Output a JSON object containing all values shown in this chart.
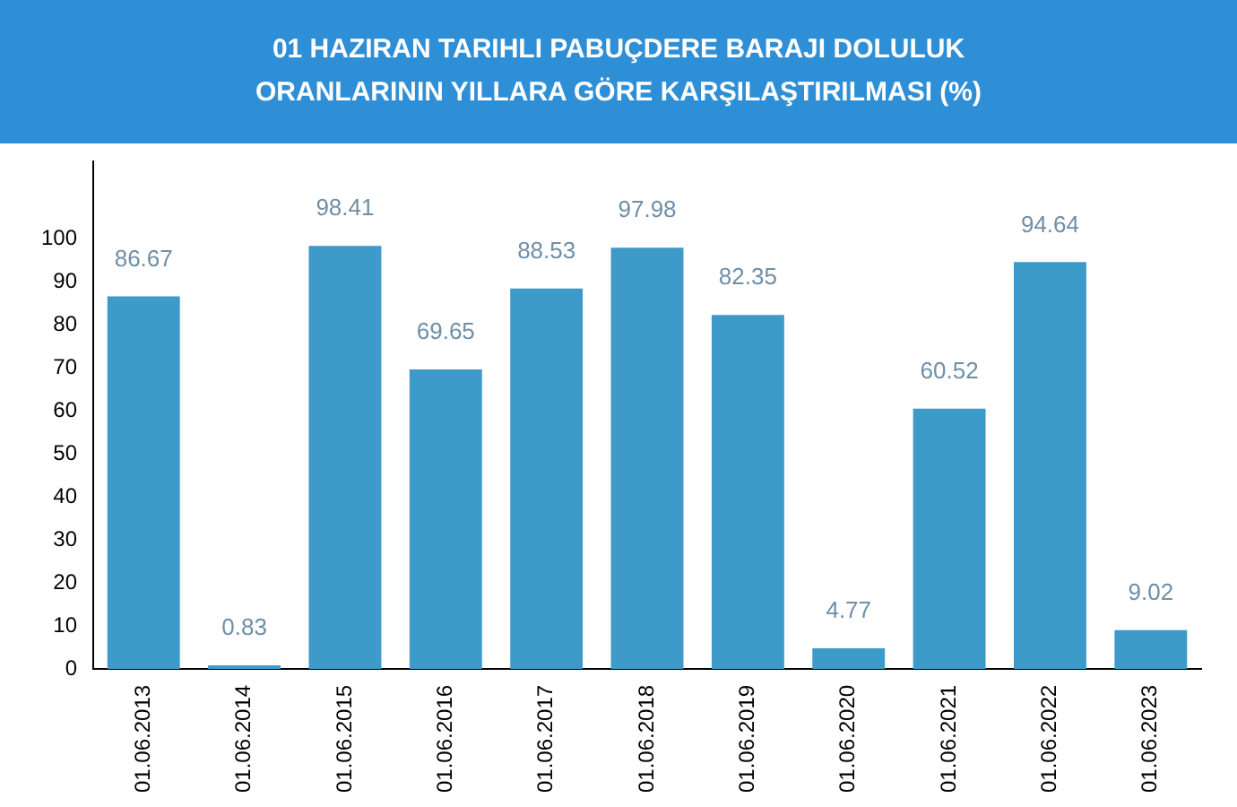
{
  "chart_data": {
    "type": "bar",
    "title": "01 HAZIRAN TARIHLI PABUÇDERE BARAJI DOLULUK ORANLARININ YILLARA GÖRE KARŞILAŞTIRILMASI (%)",
    "categories": [
      "01.06.2013",
      "01.06.2014",
      "01.06.2015",
      "01.06.2016",
      "01.06.2017",
      "01.06.2018",
      "01.06.2019",
      "01.06.2020",
      "01.06.2021",
      "01.06.2022",
      "01.06.2023"
    ],
    "values": [
      86.67,
      0.83,
      98.41,
      69.65,
      88.53,
      97.98,
      82.35,
      4.77,
      60.52,
      94.64,
      9.02
    ],
    "color": "#3d9ac9",
    "ylim": [
      0,
      118
    ],
    "yticks": [
      0,
      10,
      20,
      30,
      40,
      50,
      60,
      70,
      80,
      90,
      100
    ],
    "grid": false,
    "legend": false,
    "data_labels": true
  }
}
